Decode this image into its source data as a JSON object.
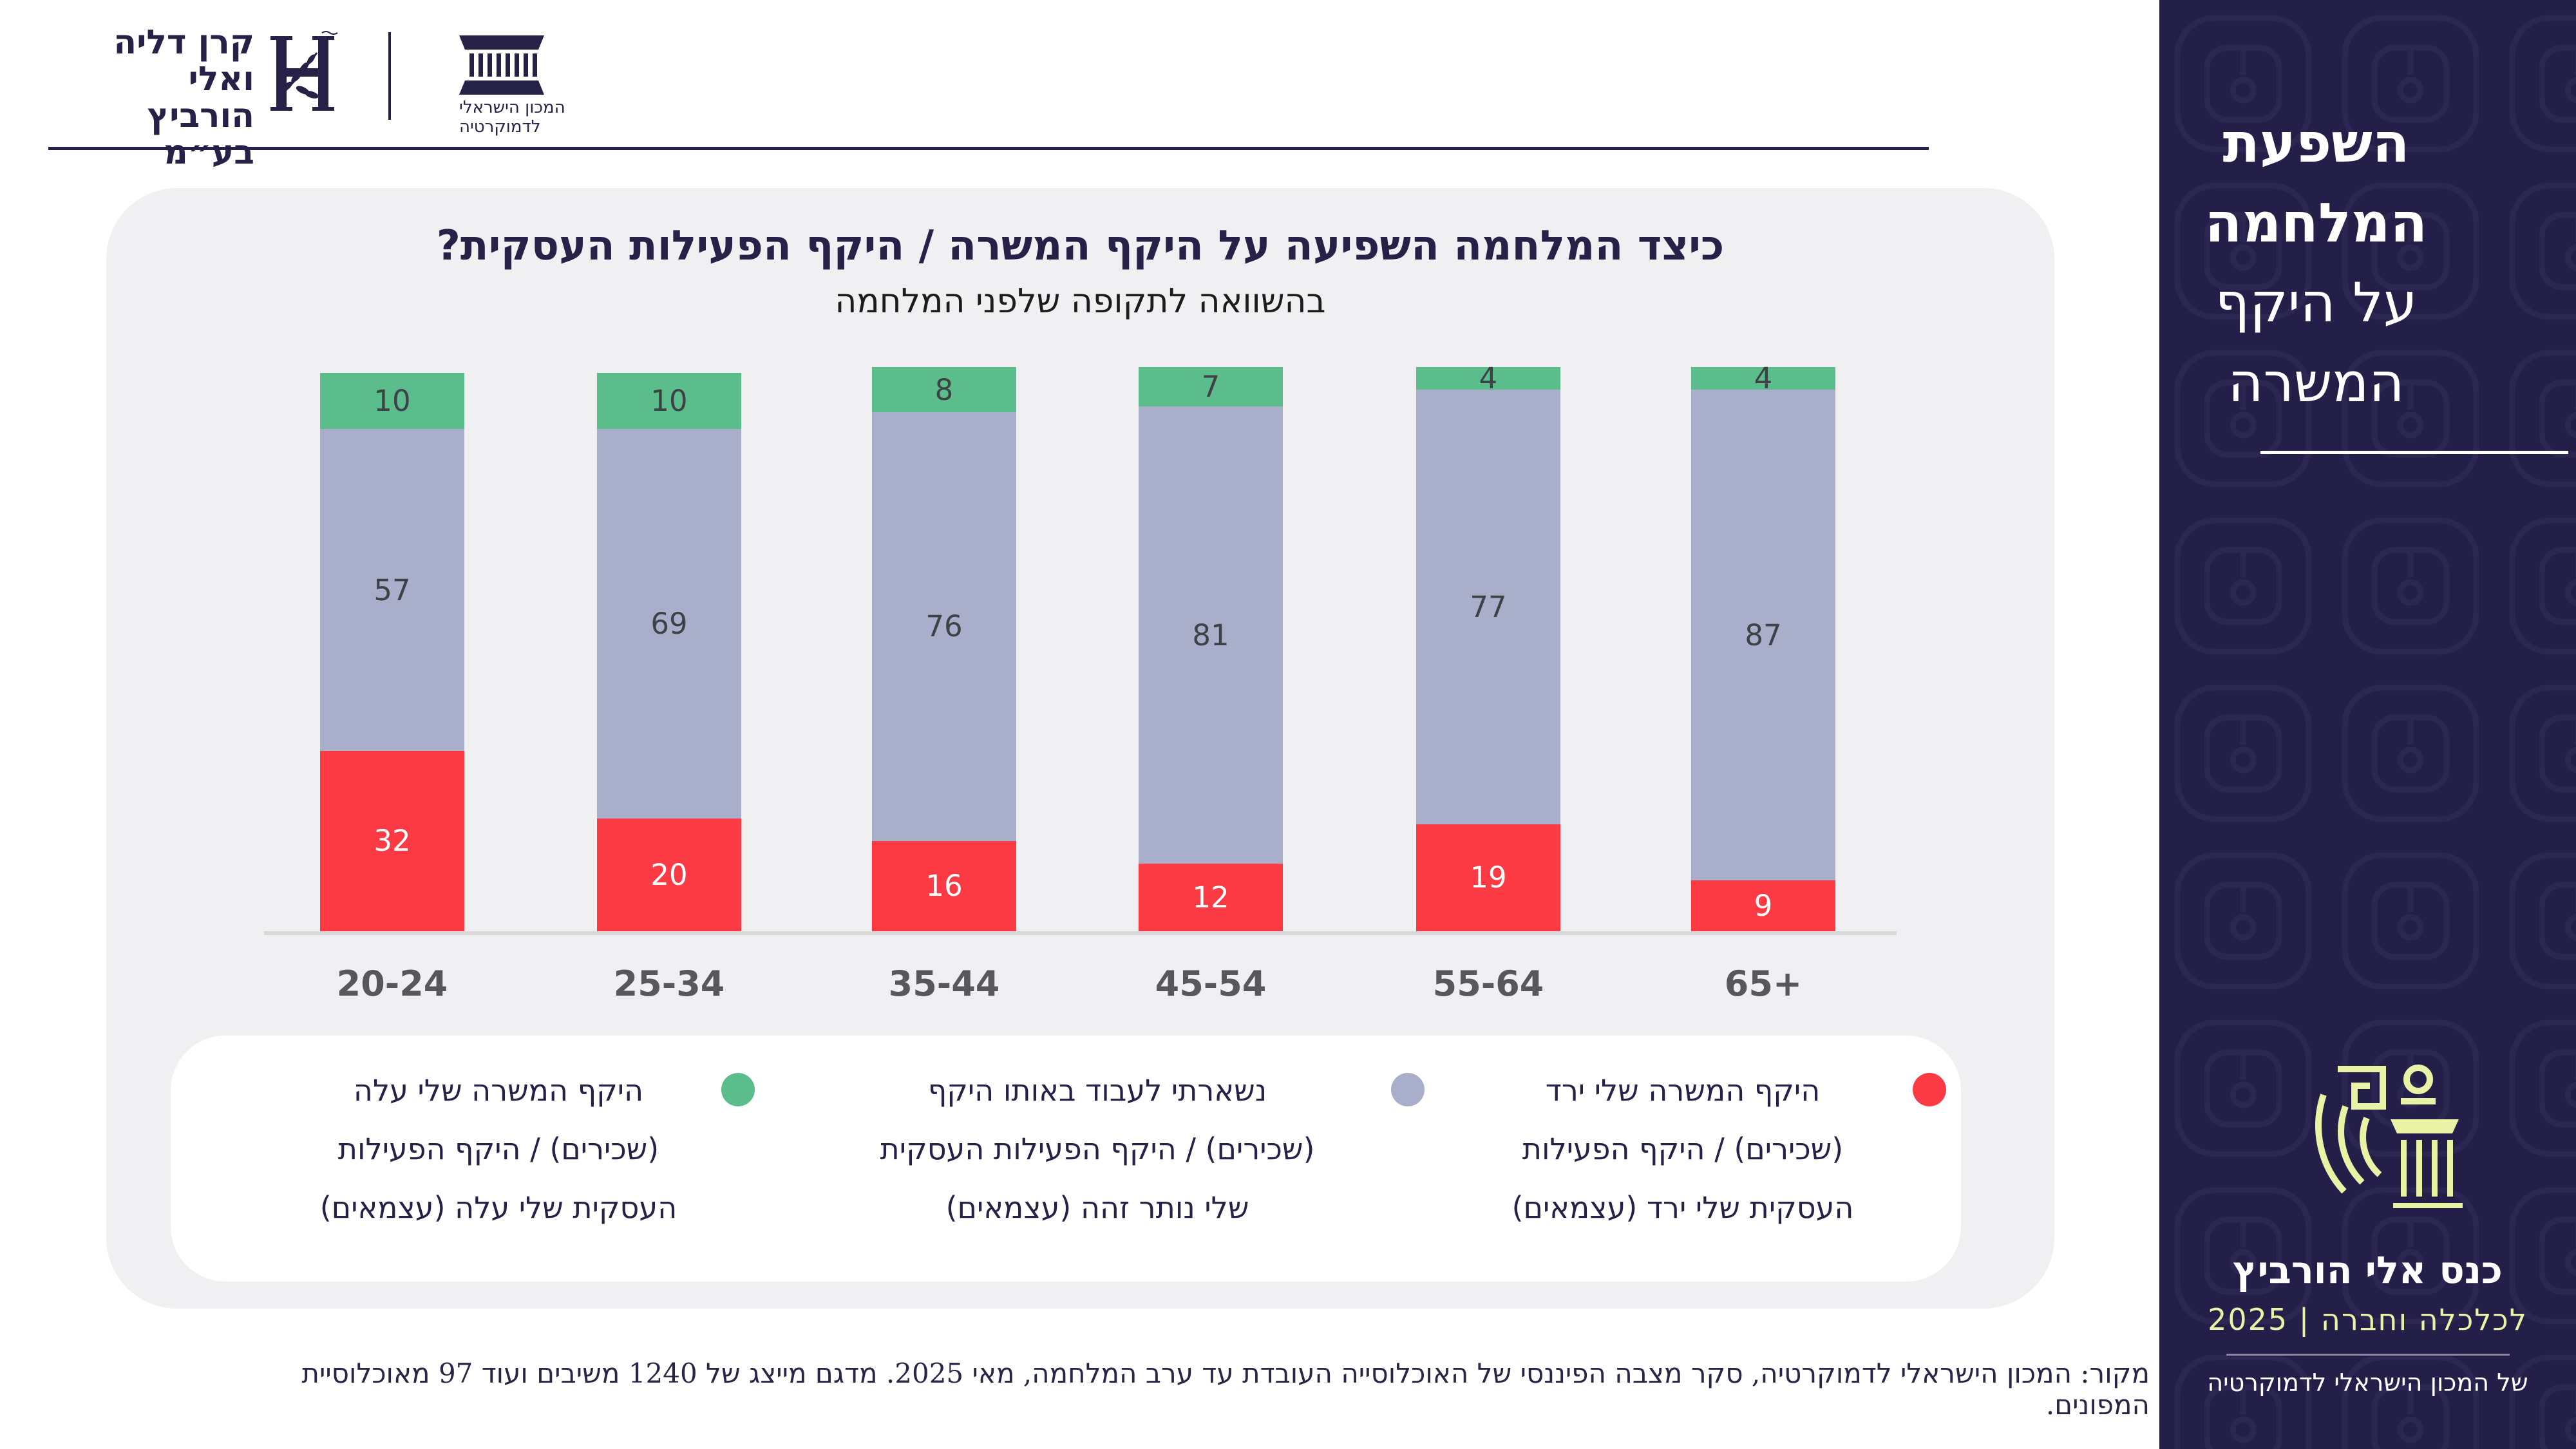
{
  "header": {
    "funder_logo": {
      "line1": "קרן דליה ואלי",
      "line2": "הורביץ בע״מ"
    },
    "idi_logo": {
      "line1": "המכון הישראלי",
      "line2": "לדמוקרטיה"
    }
  },
  "chart": {
    "title": "כיצד המלחמה השפיעה על היקף המשרה / היקף הפעילות העסקית?",
    "subtitle": "בהשוואה לתקופה שלפני המלחמה"
  },
  "chart_data": {
    "type": "bar",
    "stacked": true,
    "title": "כיצד המלחמה השפיעה על היקף המשרה / היקף הפעילות העסקית?",
    "subtitle": "בהשוואה לתקופה שלפני המלחמה",
    "categories": [
      "20-24",
      "25-34",
      "35-44",
      "45-54",
      "55-64",
      "65+"
    ],
    "series": [
      {
        "name": "היקף המשרה שלי ירד (שכירים) / היקף הפעילות העסקית שלי ירד (עצמאים)",
        "color": "#fb3a44",
        "label_color": "#ffffff",
        "values": [
          32,
          20,
          16,
          12,
          19,
          9
        ]
      },
      {
        "name": "נשארתי לעבוד באותו היקף (שכירים) / היקף הפעילות העסקית שלי נותר זהה (עצמאים)",
        "color": "#a9aecb",
        "label_color": "#3e4247",
        "values": [
          57,
          69,
          76,
          81,
          77,
          87
        ]
      },
      {
        "name": "היקף המשרה שלי עלה (שכירים) / היקף הפעילות העסקית שלי עלה (עצמאים)",
        "color": "#5bbc8c",
        "label_color": "#3e4247",
        "values": [
          10,
          10,
          8,
          7,
          4,
          4
        ]
      }
    ],
    "ylim": [
      0,
      100
    ],
    "grid": false,
    "legend_position": "bottom"
  },
  "legend": {
    "items": [
      {
        "color": "#fb3a44",
        "lines": [
          "היקף המשרה שלי ירד",
          "(שכירים) / היקף הפעילות",
          "העסקית שלי ירד (עצמאים)"
        ]
      },
      {
        "color": "#a9aecb",
        "lines": [
          "נשארתי לעבוד באותו היקף",
          "(שכירים) / היקף הפעילות העסקית",
          "שלי נותר זהה (עצמאים)"
        ]
      },
      {
        "color": "#5bbc8c",
        "lines": [
          "היקף המשרה שלי עלה",
          "(שכירים) / היקף הפעילות",
          "העסקית שלי עלה (עצמאים)"
        ]
      }
    ]
  },
  "source": "מקור: המכון הישראלי לדמוקרטיה, סקר מצבה הפיננסי של האוכלוסייה העובדת עד ערב המלחמה, מאי 2025. מדגם מייצג של 1240 משיבים ועוד 97 מאוכלוסיית המפונים.",
  "sidebar": {
    "title_lines": [
      "השפעת",
      "המלחמה",
      "על היקף",
      "המשרה"
    ],
    "conference": {
      "name": "כנס אלי הורביץ",
      "sub": "לכלכלה וחברה | 2025",
      "org": "של המכון הישראלי לדמוקרטיה"
    },
    "colors": {
      "bg": "#241f48",
      "accent": "#e9f2a5"
    }
  }
}
